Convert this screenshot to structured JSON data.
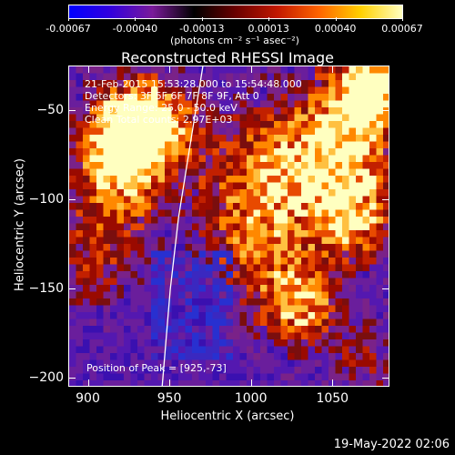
{
  "colorbar": {
    "tick_labels": [
      "-0.00067",
      "-0.00040",
      "-0.00013",
      "0.00013",
      "0.00040",
      "0.00067"
    ],
    "unit": "(photons cm⁻² s⁻¹ asec⁻²)",
    "colors": [
      "#0000ff",
      "#3300dd",
      "#7a1a9a",
      "#000000",
      "#6a0000",
      "#c21800",
      "#ff6400",
      "#ffd000",
      "#ffffc0"
    ]
  },
  "chart_data": {
    "type": "heatmap",
    "title": "Reconstructed RHESSI Image",
    "xlabel": "Heliocentric X (arcsec)",
    "ylabel": "Heliocentric Y (arcsec)",
    "xlim": [
      888,
      1085
    ],
    "ylim": [
      -205,
      -25
    ],
    "x_ticks": [
      900,
      950,
      1000,
      1050
    ],
    "y_ticks": [
      -50,
      -100,
      -150,
      -200
    ],
    "grid": false,
    "peak": [
      925,
      -73
    ],
    "limb_curve": [
      [
        970,
        -25
      ],
      [
        962,
        -70
      ],
      [
        955,
        -110
      ],
      [
        950,
        -150
      ],
      [
        945,
        -205
      ]
    ]
  },
  "info_lines": [
    "21-Feb-2015 15:53:28.000 to 15:54:48.000",
    "Detectors: 3F 5F 6F 7F 8F 9F, Att 0",
    "Energy Range: 25.0 - 50.0 keV",
    "Clean     Total counts: 2.97E+03"
  ],
  "peak_text": "Position of Peak = [925,-73]",
  "datestamp": "19-May-2022 02:06"
}
